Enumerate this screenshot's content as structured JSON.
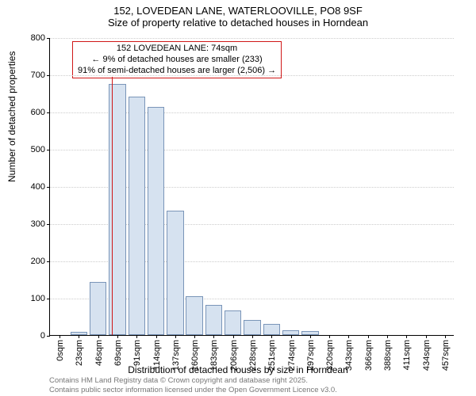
{
  "header": {
    "address": "152, LOVEDEAN LANE, WATERLOOVILLE, PO8 9SF",
    "subtitle": "Size of property relative to detached houses in Horndean"
  },
  "chart": {
    "type": "histogram",
    "y_label": "Number of detached properties",
    "x_label": "Distribution of detached houses by size in Horndean",
    "ylim": [
      0,
      800
    ],
    "ytick_step": 100,
    "yticks": [
      0,
      100,
      200,
      300,
      400,
      500,
      600,
      700,
      800
    ],
    "xticks": [
      "0sqm",
      "23sqm",
      "46sqm",
      "69sqm",
      "91sqm",
      "114sqm",
      "137sqm",
      "160sqm",
      "183sqm",
      "206sqm",
      "228sqm",
      "251sqm",
      "274sqm",
      "297sqm",
      "320sqm",
      "343sqm",
      "366sqm",
      "388sqm",
      "411sqm",
      "434sqm",
      "457sqm"
    ],
    "n_categories": 21,
    "values": [
      0,
      8,
      142,
      675,
      640,
      612,
      335,
      105,
      80,
      65,
      40,
      30,
      12,
      10,
      0,
      0,
      0,
      0,
      0,
      0,
      0
    ],
    "bar_color": "#d6e2f0",
    "bar_border_color": "#7a95b8",
    "grid_color": "#cccccc",
    "background_color": "#ffffff",
    "bar_width": 0.88,
    "reference_line": {
      "position_index": 3,
      "color": "#d01818"
    },
    "annotation": {
      "line1": "152 LOVEDEAN LANE: 74sqm",
      "line2": "← 9% of detached houses are smaller (233)",
      "line3": "91% of semi-detached houses are larger (2,506) →",
      "border_color": "#d01818",
      "fontsize": 11
    }
  },
  "footer": {
    "line1": "Contains HM Land Registry data © Crown copyright and database right 2025.",
    "line2": "Contains public sector information licensed under the Open Government Licence v3.0."
  }
}
